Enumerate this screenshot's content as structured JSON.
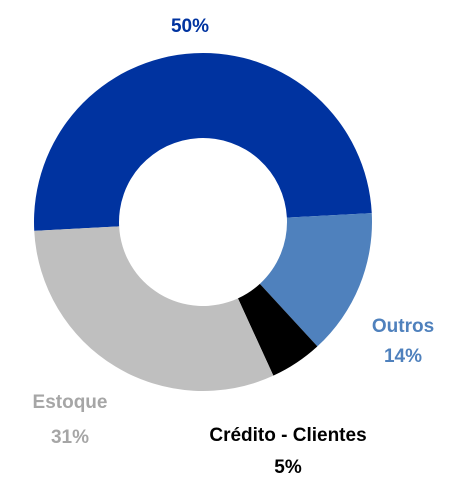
{
  "chart_data": {
    "type": "donut",
    "categories": [
      null,
      "Outros",
      "Crédito - Clientes",
      "Estoque"
    ],
    "values": [
      50,
      14,
      5,
      31
    ],
    "value_labels": [
      "50%",
      "14%",
      "5%",
      "31%"
    ],
    "colors": [
      "#0033a0",
      "#4f81bd",
      "#000000",
      "#bfbfbf"
    ],
    "label_colors": [
      "#0033a0",
      "#4f81bd",
      "#000000",
      "#a6a6a6"
    ]
  }
}
